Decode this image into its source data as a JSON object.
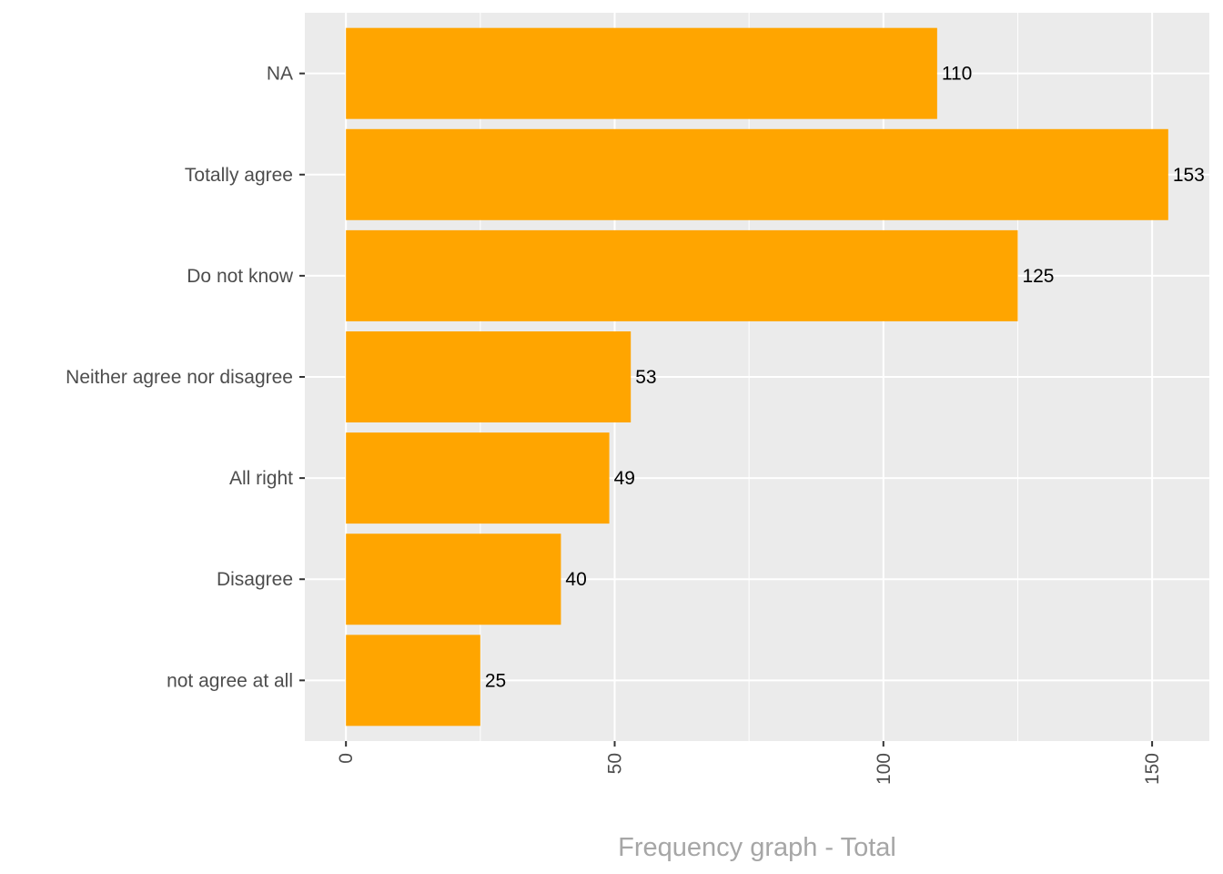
{
  "chart_data": {
    "type": "bar",
    "orientation": "horizontal",
    "categories": [
      "NA",
      "Totally agree",
      "Do not know",
      "Neither agree nor disagree",
      "All right",
      "Disagree",
      "not agree at all"
    ],
    "values": [
      110,
      153,
      125,
      53,
      49,
      40,
      25
    ],
    "data_labels": [
      "110",
      "153",
      "125",
      "53",
      "49",
      "40",
      "25"
    ],
    "xlabel": "Frequency graph - Total",
    "ylabel": "",
    "xlim": [
      -7.65,
      160.65
    ],
    "x_ticks": [
      0,
      50,
      100,
      150
    ],
    "x_tick_labels": [
      "0",
      "50",
      "100",
      "150"
    ],
    "grid": true,
    "colors": {
      "bar": "#FFA500",
      "panel": "#EBEBEB",
      "grid": "#FFFFFF",
      "axis_text": "#4D4D4D",
      "axis_title": "#A6A6A6",
      "label": "#000000"
    }
  }
}
